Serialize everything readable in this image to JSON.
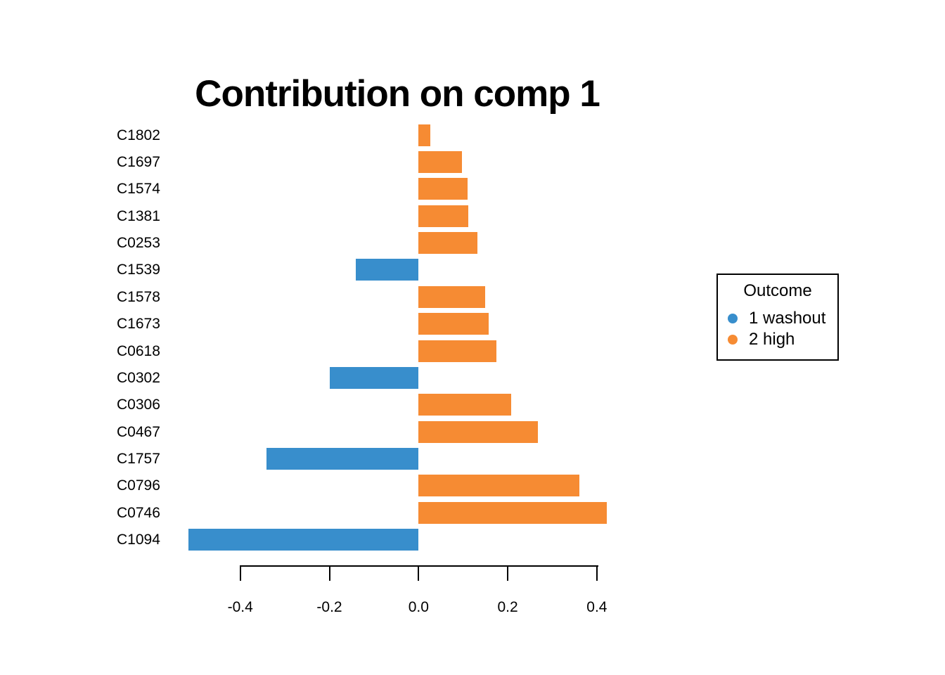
{
  "chart_data": {
    "type": "bar",
    "orientation": "horizontal",
    "title": "Contribution on comp 1",
    "categories": [
      "C1802",
      "C1697",
      "C1574",
      "C1381",
      "C0253",
      "C1539",
      "C1578",
      "C1673",
      "C0618",
      "C0302",
      "C0306",
      "C0467",
      "C1757",
      "C0796",
      "C0746",
      "C1094"
    ],
    "values": [
      0.027,
      0.097,
      0.11,
      0.112,
      0.132,
      -0.141,
      0.149,
      0.158,
      0.175,
      -0.2,
      0.207,
      0.267,
      -0.341,
      0.361,
      0.422,
      -0.517
    ],
    "groups": [
      "2 high",
      "2 high",
      "2 high",
      "2 high",
      "2 high",
      "1 washout",
      "2 high",
      "2 high",
      "2 high",
      "1 washout",
      "2 high",
      "2 high",
      "1 washout",
      "2 high",
      "2 high",
      "1 washout"
    ],
    "xlabel": "",
    "ylabel": "",
    "xlim": [
      -0.4,
      0.4
    ],
    "x_ticks": [
      {
        "value": -0.4,
        "label": "-0.4"
      },
      {
        "value": -0.2,
        "label": "-0.2"
      },
      {
        "value": 0.0,
        "label": "0.0"
      },
      {
        "value": 0.2,
        "label": "0.2"
      },
      {
        "value": 0.4,
        "label": "0.4"
      }
    ],
    "grid": false,
    "colors": {
      "1 washout": "#388ECC",
      "2 high": "#F68B33"
    },
    "legend": {
      "position": "right",
      "title": "Outcome",
      "items": [
        {
          "label": "1 washout",
          "color": "#388ECC"
        },
        {
          "label": "2 high",
          "color": "#F68B33"
        }
      ]
    }
  }
}
